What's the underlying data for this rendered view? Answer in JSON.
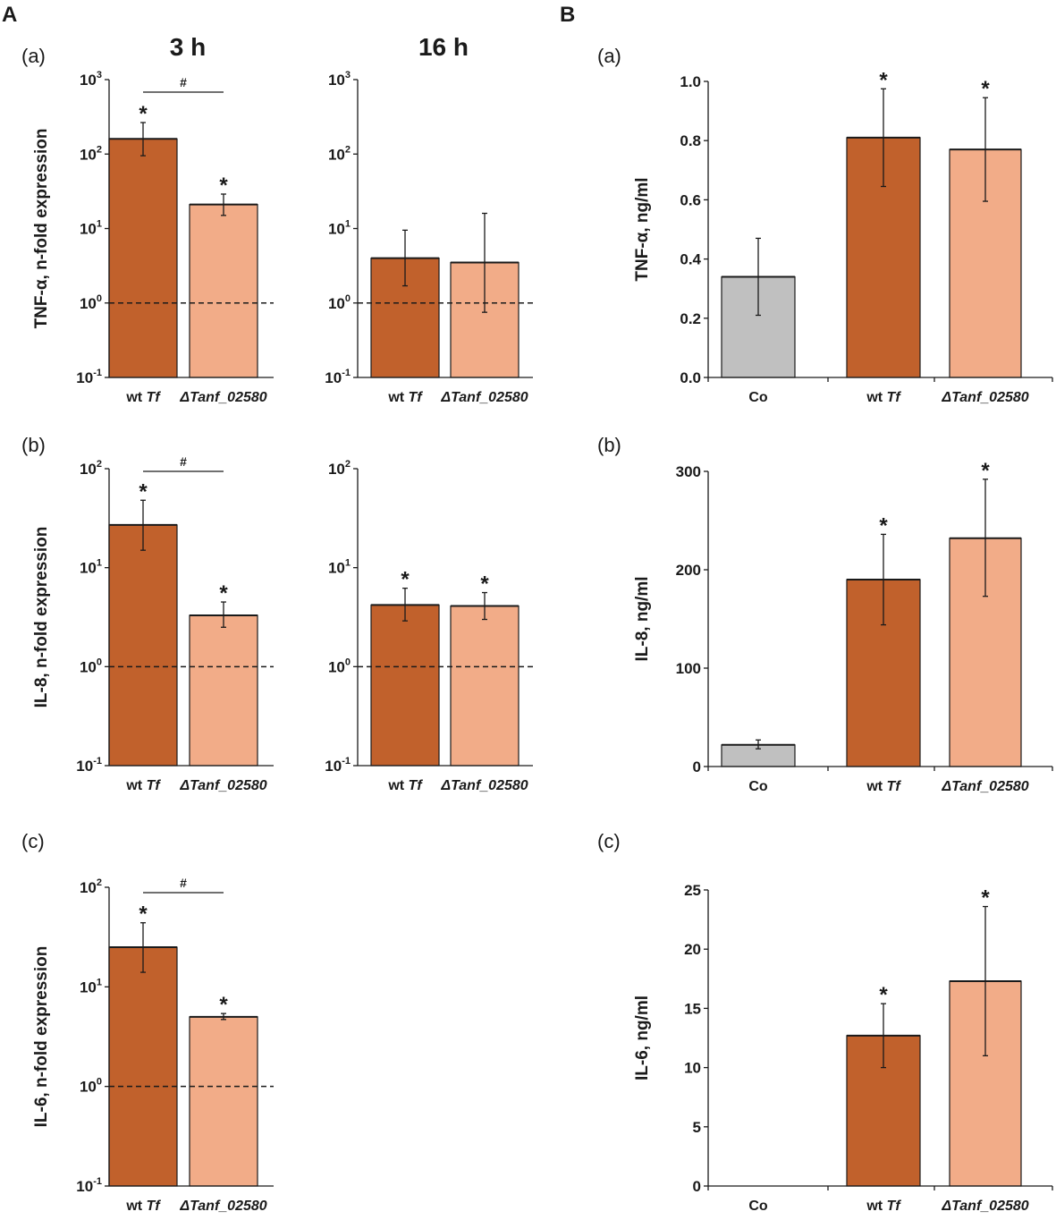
{
  "figure": {
    "panel_A_label": "A",
    "panel_B_label": "B",
    "time_3h": "3 h",
    "time_16h": "16 h",
    "sub_a": "(a)",
    "sub_b": "(b)",
    "sub_c": "(c)",
    "sub_a_B": "(a)",
    "sub_b_B": "(b)",
    "sub_c_B": "(c)"
  },
  "colors": {
    "wt": "#c1612c",
    "mutant": "#f2ac88",
    "control": "#c0c0c0",
    "axis": "#1a1a1a"
  },
  "chart_data": [
    {
      "id": "A_a_3h",
      "type": "bar",
      "scale": "log",
      "ylabel": "TNF-α, n-fold expression",
      "categories": [
        {
          "pre": "wt ",
          "it": "Tf"
        },
        {
          "pre": "",
          "it": "ΔTanf_02580"
        }
      ],
      "values": [
        160,
        21
      ],
      "err_low": [
        95,
        15
      ],
      "err_high": [
        265,
        29
      ],
      "stars": [
        true,
        true
      ],
      "hash": "#",
      "ylim": [
        0.1,
        1000
      ],
      "ticks": [
        {
          "b": "10",
          "e": "-1"
        },
        {
          "b": "10",
          "e": "0"
        },
        {
          "b": "10",
          "e": "1"
        },
        {
          "b": "10",
          "e": "2"
        },
        {
          "b": "10",
          "e": "3"
        }
      ],
      "baseline": 1
    },
    {
      "id": "A_a_16h",
      "type": "bar",
      "scale": "log",
      "ylabel": "",
      "categories": [
        {
          "pre": "wt ",
          "it": "Tf"
        },
        {
          "pre": "",
          "it": "ΔTanf_02580"
        }
      ],
      "values": [
        4,
        3.5
      ],
      "err_low": [
        1.7,
        0.75
      ],
      "err_high": [
        9.5,
        16
      ],
      "stars": [
        false,
        false
      ],
      "ylim": [
        0.1,
        1000
      ],
      "ticks": [
        {
          "b": "10",
          "e": "-1"
        },
        {
          "b": "10",
          "e": "0"
        },
        {
          "b": "10",
          "e": "1"
        },
        {
          "b": "10",
          "e": "2"
        },
        {
          "b": "10",
          "e": "3"
        }
      ],
      "baseline": 1
    },
    {
      "id": "A_b_3h",
      "type": "bar",
      "scale": "log",
      "ylabel": "IL-8, n-fold expression",
      "categories": [
        {
          "pre": "wt ",
          "it": "Tf"
        },
        {
          "pre": "",
          "it": "ΔTanf_02580"
        }
      ],
      "values": [
        27,
        3.3
      ],
      "err_low": [
        15,
        2.5
      ],
      "err_high": [
        48,
        4.5
      ],
      "stars": [
        true,
        true
      ],
      "hash": "#",
      "ylim": [
        0.1,
        100
      ],
      "ticks": [
        {
          "b": "10",
          "e": "-1"
        },
        {
          "b": "10",
          "e": "0"
        },
        {
          "b": "10",
          "e": "1"
        },
        {
          "b": "10",
          "e": "2"
        }
      ],
      "baseline": 1
    },
    {
      "id": "A_b_16h",
      "type": "bar",
      "scale": "log",
      "ylabel": "",
      "categories": [
        {
          "pre": "wt ",
          "it": "Tf"
        },
        {
          "pre": "",
          "it": "ΔTanf_02580"
        }
      ],
      "values": [
        4.2,
        4.1
      ],
      "err_low": [
        2.9,
        3.0
      ],
      "err_high": [
        6.2,
        5.6
      ],
      "stars": [
        true,
        true
      ],
      "ylim": [
        0.1,
        100
      ],
      "ticks": [
        {
          "b": "10",
          "e": "-1"
        },
        {
          "b": "10",
          "e": "0"
        },
        {
          "b": "10",
          "e": "1"
        },
        {
          "b": "10",
          "e": "2"
        }
      ],
      "baseline": 1
    },
    {
      "id": "A_c_3h",
      "type": "bar",
      "scale": "log",
      "ylabel": "IL-6, n-fold expression",
      "categories": [
        {
          "pre": "wt ",
          "it": "Tf"
        },
        {
          "pre": "",
          "it": "ΔTanf_02580"
        }
      ],
      "values": [
        25,
        5
      ],
      "err_low": [
        14,
        4.7
      ],
      "err_high": [
        44,
        5.4
      ],
      "stars": [
        true,
        true
      ],
      "hash": "#",
      "ylim": [
        0.1,
        100
      ],
      "ticks": [
        {
          "b": "10",
          "e": "-1"
        },
        {
          "b": "10",
          "e": "0"
        },
        {
          "b": "10",
          "e": "1"
        },
        {
          "b": "10",
          "e": "2"
        }
      ],
      "baseline": 1
    },
    {
      "id": "B_a",
      "type": "bar",
      "scale": "linear",
      "ylabel": "TNF-α, ng/ml",
      "categories": [
        {
          "pre": "Co",
          "it": ""
        },
        {
          "pre": "wt ",
          "it": "Tf"
        },
        {
          "pre": "",
          "it": "ΔTanf_02580"
        }
      ],
      "values": [
        0.34,
        0.81,
        0.77
      ],
      "err_low": [
        0.21,
        0.645,
        0.595
      ],
      "err_high": [
        0.47,
        0.975,
        0.945
      ],
      "stars": [
        false,
        true,
        true
      ],
      "ylim": [
        0,
        1.0
      ],
      "ticks": [
        "0.0",
        "0.2",
        "0.4",
        "0.6",
        "0.8",
        "1.0"
      ]
    },
    {
      "id": "B_b",
      "type": "bar",
      "scale": "linear",
      "ylabel": "IL-8, ng/ml",
      "categories": [
        {
          "pre": "Co",
          "it": ""
        },
        {
          "pre": "wt ",
          "it": "Tf"
        },
        {
          "pre": "",
          "it": "ΔTanf_02580"
        }
      ],
      "values": [
        22,
        190,
        232
      ],
      "err_low": [
        18,
        144,
        173
      ],
      "err_high": [
        27,
        236,
        292
      ],
      "stars": [
        false,
        true,
        true
      ],
      "ylim": [
        0,
        300
      ],
      "ticks": [
        "0",
        "100",
        "200",
        "300"
      ]
    },
    {
      "id": "B_c",
      "type": "bar",
      "scale": "linear",
      "ylabel": "IL-6, ng/ml",
      "categories": [
        {
          "pre": "Co",
          "it": ""
        },
        {
          "pre": "wt ",
          "it": "Tf"
        },
        {
          "pre": "",
          "it": "ΔTanf_02580"
        }
      ],
      "values": [
        0,
        12.7,
        17.3
      ],
      "err_low": [
        0,
        10.0,
        11.0
      ],
      "err_high": [
        0,
        15.4,
        23.6
      ],
      "stars": [
        false,
        true,
        true
      ],
      "ylim": [
        0,
        25
      ],
      "ticks": [
        "0",
        "5",
        "10",
        "15",
        "20",
        "25"
      ]
    }
  ]
}
